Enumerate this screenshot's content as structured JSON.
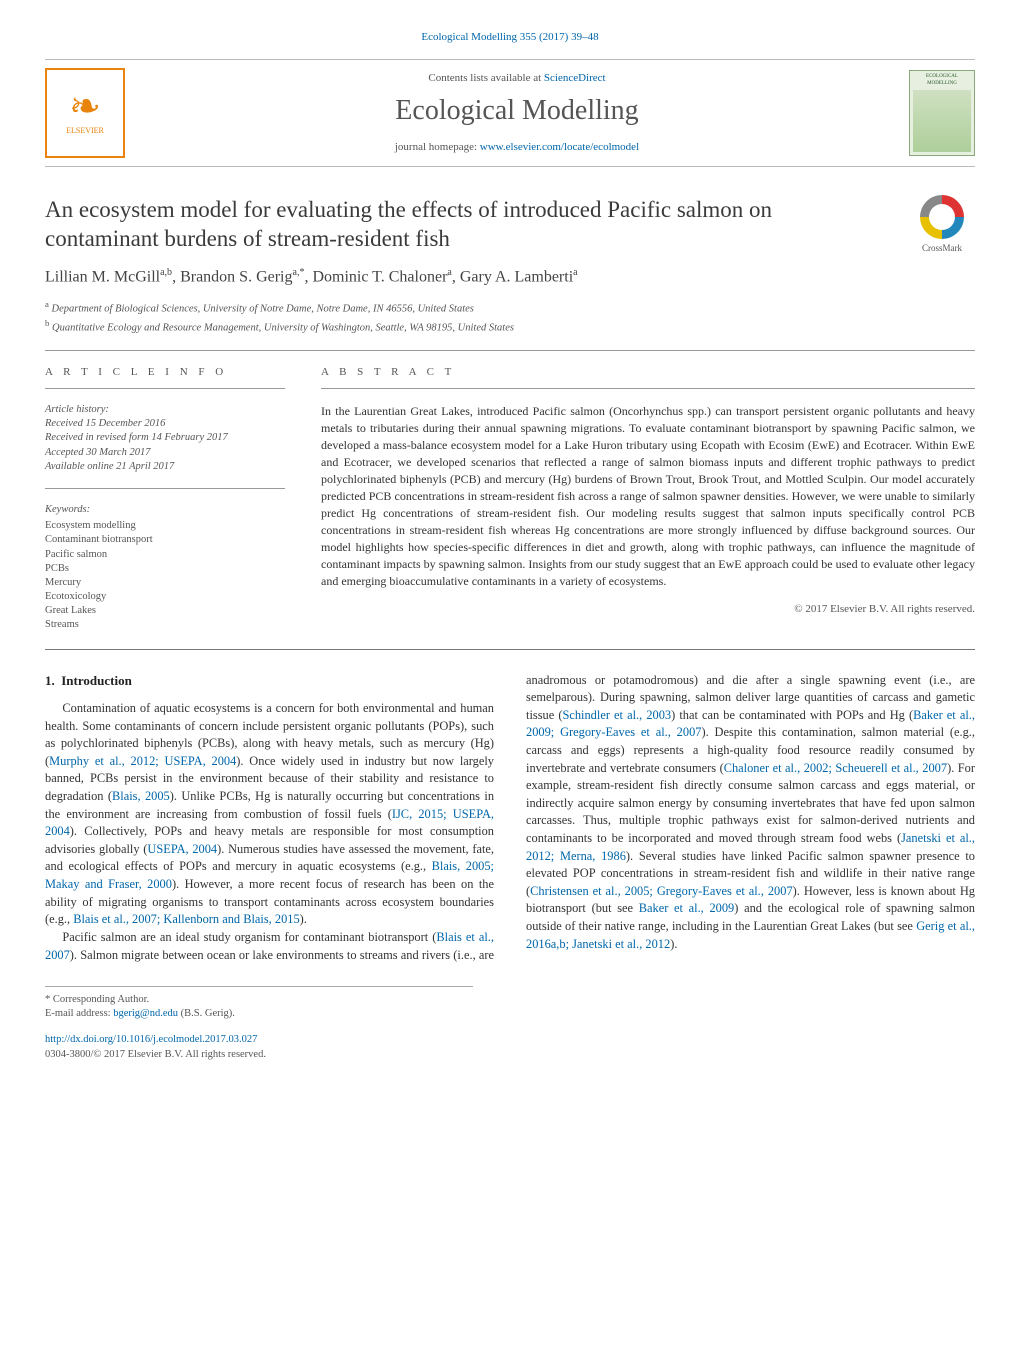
{
  "journal_header": "Ecological Modelling 355 (2017) 39–48",
  "masthead": {
    "contents_prefix": "Contents lists available at ",
    "contents_link": "ScienceDirect",
    "journal_title": "Ecological Modelling",
    "homepage_prefix": "journal homepage: ",
    "homepage_url": "www.elsevier.com/locate/ecolmodel",
    "publisher_name": "ELSEVIER",
    "cover_label": "ECOLOGICAL MODELLING"
  },
  "crossmark_label": "CrossMark",
  "article": {
    "title": "An ecosystem model for evaluating the effects of introduced Pacific salmon on contaminant burdens of stream-resident fish",
    "authors_html": "Lillian M. McGill",
    "author1": "Lillian M. McGill",
    "author1_sup": "a,b",
    "author2": "Brandon S. Gerig",
    "author2_sup": "a,*",
    "author3": "Dominic T. Chaloner",
    "author3_sup": "a",
    "author4": "Gary A. Lamberti",
    "author4_sup": "a",
    "affiliations": {
      "a": "Department of Biological Sciences, University of Notre Dame, Notre Dame, IN 46556, United States",
      "b": "Quantitative Ecology and Resource Management, University of Washington, Seattle, WA 98195, United States"
    }
  },
  "info": {
    "section_label": "A R T I C L E   I N F O",
    "history_label": "Article history:",
    "received": "Received 15 December 2016",
    "revised": "Received in revised form 14 February 2017",
    "accepted": "Accepted 30 March 2017",
    "online": "Available online 21 April 2017",
    "keywords_label": "Keywords:",
    "keywords": [
      "Ecosystem modelling",
      "Contaminant biotransport",
      "Pacific salmon",
      "PCBs",
      "Mercury",
      "Ecotoxicology",
      "Great Lakes",
      "Streams"
    ]
  },
  "abstract": {
    "section_label": "A B S T R A C T",
    "text": "In the Laurentian Great Lakes, introduced Pacific salmon (Oncorhynchus spp.) can transport persistent organic pollutants and heavy metals to tributaries during their annual spawning migrations. To evaluate contaminant biotransport by spawning Pacific salmon, we developed a mass-balance ecosystem model for a Lake Huron tributary using Ecopath with Ecosim (EwE) and Ecotracer. Within EwE and Ecotracer, we developed scenarios that reflected a range of salmon biomass inputs and different trophic pathways to predict polychlorinated biphenyls (PCB) and mercury (Hg) burdens of Brown Trout, Brook Trout, and Mottled Sculpin. Our model accurately predicted PCB concentrations in stream-resident fish across a range of salmon spawner densities. However, we were unable to similarly predict Hg concentrations of stream-resident fish. Our modeling results suggest that salmon inputs specifically control PCB concentrations in stream-resident fish whereas Hg concentrations are more strongly influenced by diffuse background sources. Our model highlights how species-specific differences in diet and growth, along with trophic pathways, can influence the magnitude of contaminant impacts by spawning salmon. Insights from our study suggest that an EwE approach could be used to evaluate other legacy and emerging bioaccumulative contaminants in a variety of ecosystems.",
    "copyright": "© 2017 Elsevier B.V. All rights reserved."
  },
  "body": {
    "section_number": "1.",
    "section_title": "Introduction",
    "col1_p1_a": "Contamination of aquatic ecosystems is a concern for both environmental and human health. Some contaminants of concern include persistent organic pollutants (POPs), such as polychlorinated biphenyls (PCBs), along with heavy metals, such as mercury (Hg) (",
    "ref1": "Murphy et al., 2012; USEPA, 2004",
    "col1_p1_b": "). Once widely used in industry but now largely banned, PCBs persist in the environment because of their stability and resistance to degradation (",
    "ref2": "Blais, 2005",
    "col1_p1_c": "). Unlike PCBs, Hg is naturally occurring but concentrations in the environment are increasing from combustion of fossil fuels (",
    "ref3": "IJC, 2015; USEPA, 2004",
    "col1_p1_d": "). Collectively, POPs and heavy metals are responsible for most consumption advisories globally (",
    "ref4": "USEPA, 2004",
    "col1_p1_e": "). Numerous studies have assessed the movement, fate, and ecological effects of POPs and mercury in aquatic ecosystems (e.g., ",
    "ref5": "Blais, 2005; Makay and Fraser, 2000",
    "col1_p1_f": "). However, a more recent focus of research has been on the ability of migrating organisms to transport contaminants across ecosystem boundaries (e.g., ",
    "ref6": "Blais et al., 2007; Kallenborn and Blais, 2015",
    "col1_p1_g": ").",
    "col2_p1_a": "Pacific salmon are an ideal study organism for contaminant biotransport (",
    "ref7": "Blais et al., 2007",
    "col2_p1_b": "). Salmon migrate between ocean or lake environments to streams and rivers (i.e., are anadromous or potamodromous) and die after a single spawning event (i.e., are semelparous). During spawning, salmon deliver large quantities of carcass and gametic tissue (",
    "ref8": "Schindler et al., 2003",
    "col2_p1_c": ") that can be contaminated with POPs and Hg (",
    "ref9": "Baker et al., 2009; Gregory-Eaves et al., 2007",
    "col2_p1_d": "). Despite this contamination, salmon material (e.g., carcass and eggs) represents a high-quality food resource readily consumed by invertebrate and vertebrate consumers (",
    "ref10": "Chaloner et al., 2002; Scheuerell et al., 2007",
    "col2_p1_e": "). For example, stream-resident fish directly consume salmon carcass and eggs material, or indirectly acquire salmon energy by consuming invertebrates that have fed upon salmon carcasses. Thus, multiple trophic pathways exist for salmon-derived nutrients and contaminants to be incorporated and moved through stream food webs (",
    "ref11": "Janetski et al., 2012; Merna, 1986",
    "col2_p1_f": "). Several studies have linked Pacific salmon spawner presence to elevated POP concentrations in stream-resident fish and wildlife in their native range (",
    "ref12": "Christensen et al., 2005; Gregory-Eaves et al., 2007",
    "col2_p1_g": "). However, less is known about Hg biotransport (but see ",
    "ref13": "Baker et al., 2009",
    "col2_p1_h": ") and the ecological role of spawning salmon outside of their native range, including in the Laurentian Great Lakes (but see ",
    "ref14": "Gerig et al., 2016a,b; Janetski et al., 2012",
    "col2_p1_i": ")."
  },
  "footnotes": {
    "corresponding": "* Corresponding Author.",
    "email_label": "E-mail address: ",
    "email": "bgerig@nd.edu",
    "email_tail": " (B.S. Gerig)."
  },
  "doi": {
    "url": "http://dx.doi.org/10.1016/j.ecolmodel.2017.03.027",
    "line2": "0304-3800/© 2017 Elsevier B.V. All rights reserved."
  },
  "colors": {
    "link": "#0066aa",
    "elsevier": "#e8830c",
    "text": "#333333",
    "muted": "#555555",
    "rule": "#999999"
  }
}
